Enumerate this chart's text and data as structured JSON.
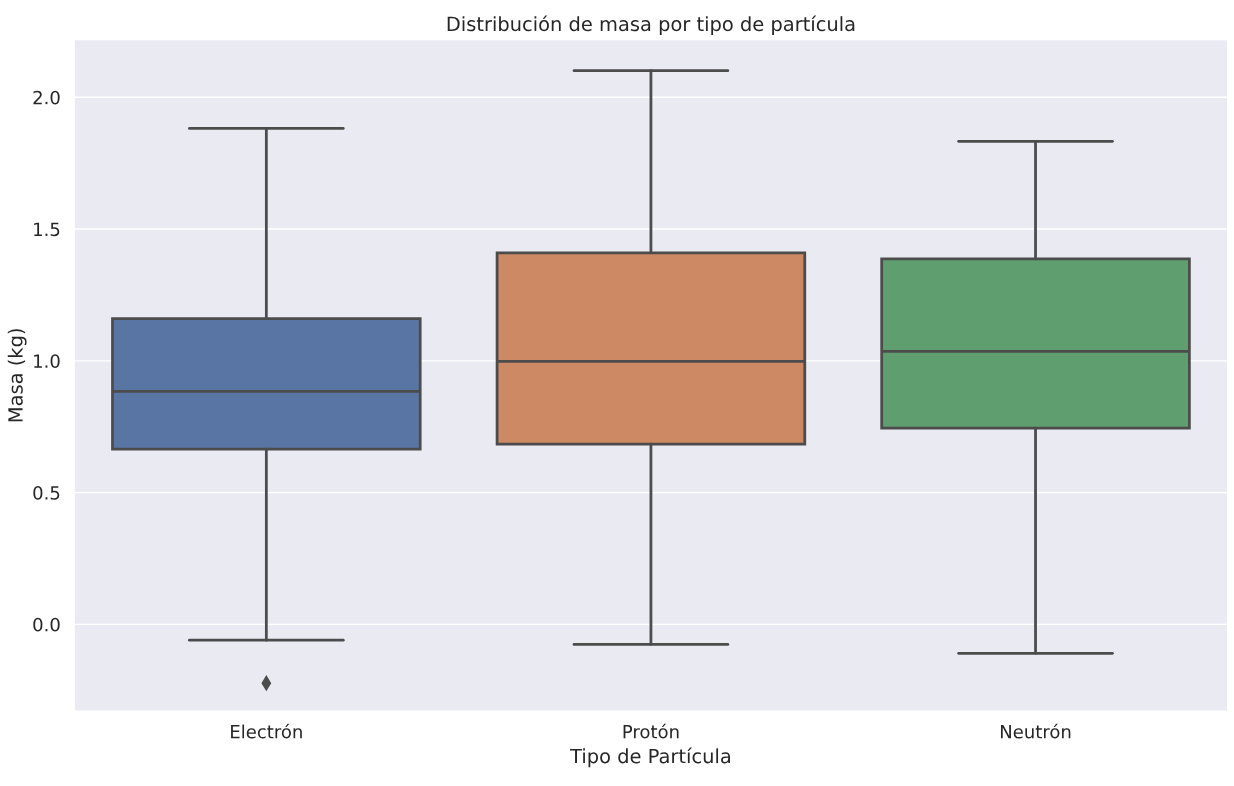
{
  "chart_data": {
    "type": "box",
    "title": "Distribución de masa por tipo de partícula",
    "xlabel": "Tipo de Partícula",
    "ylabel": "Masa (kg)",
    "categories": [
      "Electrón",
      "Protón",
      "Neutrón"
    ],
    "colors": [
      "#5975a4",
      "#cc8963",
      "#5f9e6e"
    ],
    "boxes": [
      {
        "low": -0.06,
        "q1": 0.665,
        "median": 0.884,
        "q3": 1.16,
        "high": 1.882,
        "outliers": [
          -0.223
        ]
      },
      {
        "low": -0.076,
        "q1": 0.684,
        "median": 0.998,
        "q3": 1.41,
        "high": 2.101
      },
      {
        "low": -0.11,
        "q1": 0.745,
        "median": 1.036,
        "q3": 1.387,
        "high": 1.833
      }
    ],
    "ylim": [
      -0.33,
      2.22
    ],
    "yticks": [
      {
        "value": 0,
        "label": "0.0"
      },
      {
        "value": 0.5,
        "label": "0.5"
      },
      {
        "value": 1,
        "label": "1.0"
      },
      {
        "value": 1.5,
        "label": "1.5"
      },
      {
        "value": 2,
        "label": "2.0"
      }
    ],
    "grid": "y",
    "marker": "diamond"
  }
}
